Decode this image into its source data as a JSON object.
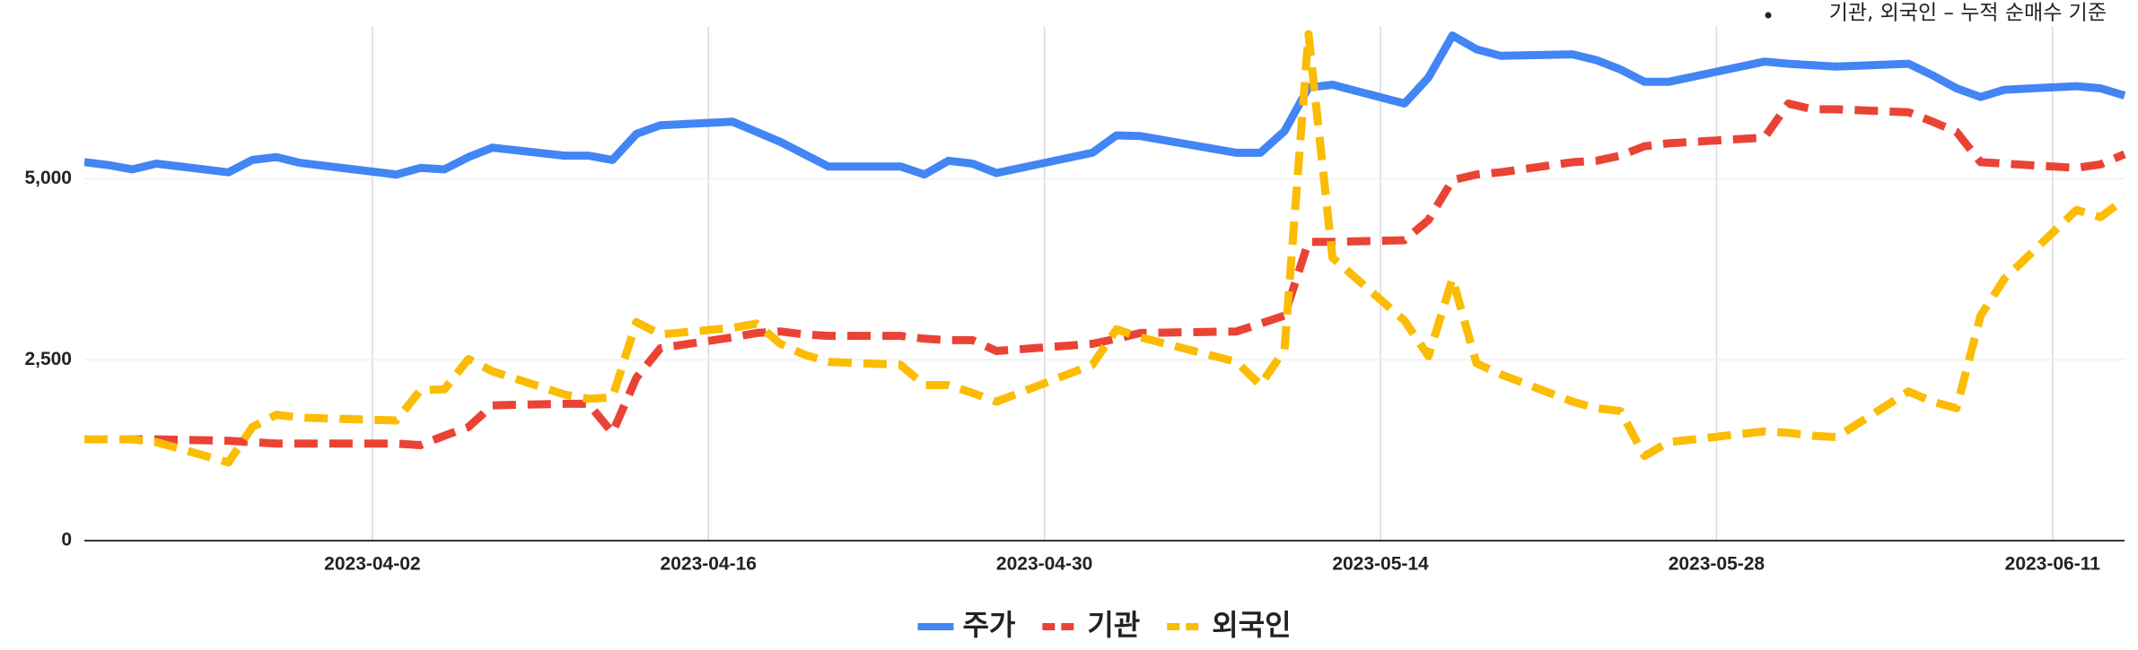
{
  "chart_data": {
    "type": "line",
    "annotation": "기관, 외국인 – 누적 순매수 기준",
    "x": [
      "2023-03-21",
      "2023-03-22",
      "2023-03-23",
      "2023-03-24",
      "2023-03-27",
      "2023-03-28",
      "2023-03-29",
      "2023-03-30",
      "2023-04-03",
      "2023-04-04",
      "2023-04-05",
      "2023-04-06",
      "2023-04-07",
      "2023-04-10",
      "2023-04-11",
      "2023-04-12",
      "2023-04-13",
      "2023-04-14",
      "2023-04-17",
      "2023-04-18",
      "2023-04-19",
      "2023-04-20",
      "2023-04-21",
      "2023-04-24",
      "2023-04-25",
      "2023-04-26",
      "2023-04-27",
      "2023-04-28",
      "2023-05-02",
      "2023-05-03",
      "2023-05-04",
      "2023-05-08",
      "2023-05-09",
      "2023-05-10",
      "2023-05-11",
      "2023-05-12",
      "2023-05-15",
      "2023-05-16",
      "2023-05-17",
      "2023-05-18",
      "2023-05-19",
      "2023-05-22",
      "2023-05-23",
      "2023-05-24",
      "2023-05-25",
      "2023-05-26",
      "2023-05-30",
      "2023-05-31",
      "2023-06-01",
      "2023-06-02",
      "2023-06-05",
      "2023-06-06",
      "2023-06-07",
      "2023-06-08",
      "2023-06-09",
      "2023-06-12",
      "2023-06-13",
      "2023-06-14"
    ],
    "series": [
      {
        "name": "주가",
        "color": "#4285f4",
        "dashed": false,
        "values": [
          5230,
          5190,
          5130,
          5210,
          5090,
          5260,
          5300,
          5220,
          5060,
          5150,
          5130,
          5300,
          5430,
          5320,
          5320,
          5260,
          5620,
          5740,
          5790,
          5650,
          5510,
          5340,
          5170,
          5170,
          5060,
          5250,
          5210,
          5080,
          5360,
          5600,
          5590,
          5360,
          5360,
          5660,
          6260,
          6300,
          6040,
          6400,
          6980,
          6790,
          6700,
          6720,
          6640,
          6510,
          6340,
          6340,
          6620,
          6590,
          6570,
          6550,
          6590,
          6430,
          6250,
          6130,
          6230,
          6280,
          6250,
          6150
        ]
      },
      {
        "name": "기관",
        "color": "#ea4335",
        "dashed": true,
        "values": [
          1400,
          1400,
          1400,
          1400,
          1380,
          1360,
          1340,
          1340,
          1340,
          1320,
          1450,
          1570,
          1870,
          1890,
          1890,
          1490,
          2250,
          2660,
          2810,
          2870,
          2890,
          2850,
          2830,
          2830,
          2790,
          2770,
          2770,
          2620,
          2720,
          2790,
          2870,
          2890,
          3000,
          3110,
          4130,
          4130,
          4150,
          4430,
          4980,
          5060,
          5090,
          5230,
          5250,
          5320,
          5450,
          5490,
          5570,
          6040,
          5960,
          5960,
          5920,
          5790,
          5650,
          5230,
          5210,
          5150,
          5200,
          5340
        ]
      },
      {
        "name": "외국인",
        "color": "#fbbc04",
        "dashed": true,
        "values": [
          1400,
          1400,
          1400,
          1360,
          1080,
          1570,
          1740,
          1700,
          1660,
          2080,
          2090,
          2510,
          2340,
          2020,
          1960,
          1980,
          3020,
          2850,
          2940,
          3000,
          2720,
          2570,
          2470,
          2430,
          2150,
          2150,
          2040,
          1920,
          2430,
          2920,
          2810,
          2470,
          2150,
          2640,
          7000,
          3910,
          3040,
          2550,
          3620,
          2450,
          2300,
          1920,
          1830,
          1790,
          1170,
          1360,
          1510,
          1490,
          1450,
          1430,
          2060,
          1920,
          1830,
          3110,
          3620,
          4570,
          4470,
          4720
        ]
      }
    ],
    "xlim": [
      "2023-03-21",
      "2023-06-14"
    ],
    "xticks": [
      "2023-04-02",
      "2023-04-16",
      "2023-04-30",
      "2023-05-14",
      "2023-05-28",
      "2023-06-11"
    ],
    "ylim": [
      0,
      7000
    ],
    "yticks": [
      0,
      {
        "value": 2500,
        "label": "2,500"
      },
      {
        "value": 5000,
        "label": "5,000"
      }
    ],
    "grid": true,
    "legend": "bottom"
  }
}
